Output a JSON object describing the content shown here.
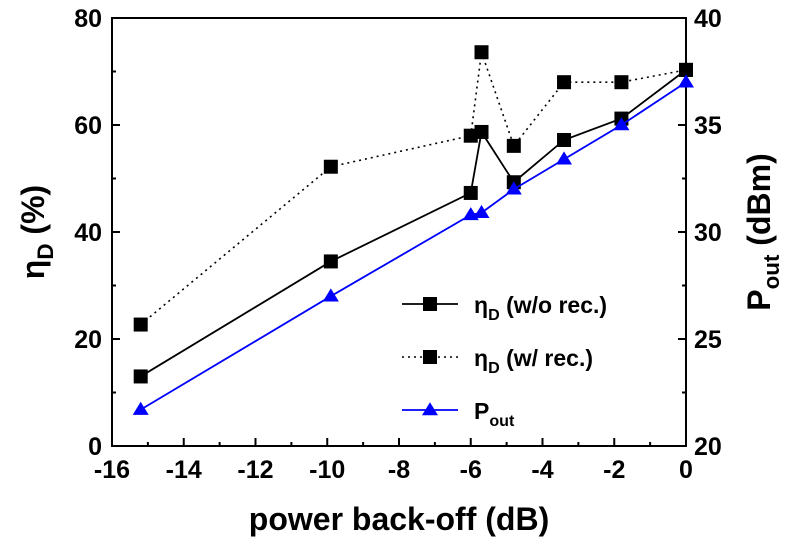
{
  "chart_data": {
    "type": "line",
    "xlabel": "power back-off (dB)",
    "ylabel_left": {
      "main": "η",
      "sub": "D",
      "suffix": " (%)"
    },
    "ylabel_right": {
      "main": "P",
      "sub": "out",
      "suffix": " (dBm)"
    },
    "xlim": [
      -16,
      0
    ],
    "ylim_left": [
      0,
      80
    ],
    "ylim_right": [
      20,
      40
    ],
    "x_ticks": [
      -16,
      -14,
      -12,
      -10,
      -8,
      -6,
      -4,
      -2,
      0
    ],
    "y_left_ticks": [
      0,
      20,
      40,
      60,
      80
    ],
    "y_right_ticks": [
      20,
      25,
      30,
      35,
      40
    ],
    "grid": false,
    "legend_position": "bottom-right",
    "colors": {
      "black": "#000000",
      "blue": "#0000ff"
    },
    "series": [
      {
        "name": "ηD (w/o rec.)",
        "label_main": "η",
        "label_sub": "D",
        "label_suffix": " (w/o rec.)",
        "axis": "left",
        "marker": "square",
        "line": "solid",
        "color": "#000000",
        "x": [
          -15.2,
          -9.9,
          -6.0,
          -5.7,
          -4.8,
          -3.4,
          -1.8,
          0
        ],
        "y": [
          13,
          34.5,
          47.3,
          58.7,
          49.3,
          57.2,
          61.2,
          70.3
        ]
      },
      {
        "name": "ηD (w/ rec.)",
        "label_main": "η",
        "label_sub": "D",
        "label_suffix": " (w/ rec.)",
        "axis": "left",
        "marker": "square",
        "line": "dotted",
        "color": "#000000",
        "x": [
          -15.2,
          -9.9,
          -6.0,
          -5.7,
          -4.8,
          -3.4,
          -1.8,
          0
        ],
        "y": [
          22.7,
          52.2,
          58,
          73.6,
          56.1,
          68,
          68,
          70.3
        ]
      },
      {
        "name": "Pout",
        "label_main": "P",
        "label_sub": "out",
        "label_suffix": "",
        "axis": "right",
        "marker": "triangle",
        "line": "solid",
        "color": "#0000ff",
        "x": [
          -15.2,
          -9.9,
          -6.0,
          -5.7,
          -4.8,
          -3.4,
          -1.8,
          0
        ],
        "y": [
          21.7,
          27,
          30.8,
          30.9,
          32,
          33.4,
          35,
          37
        ]
      }
    ]
  }
}
